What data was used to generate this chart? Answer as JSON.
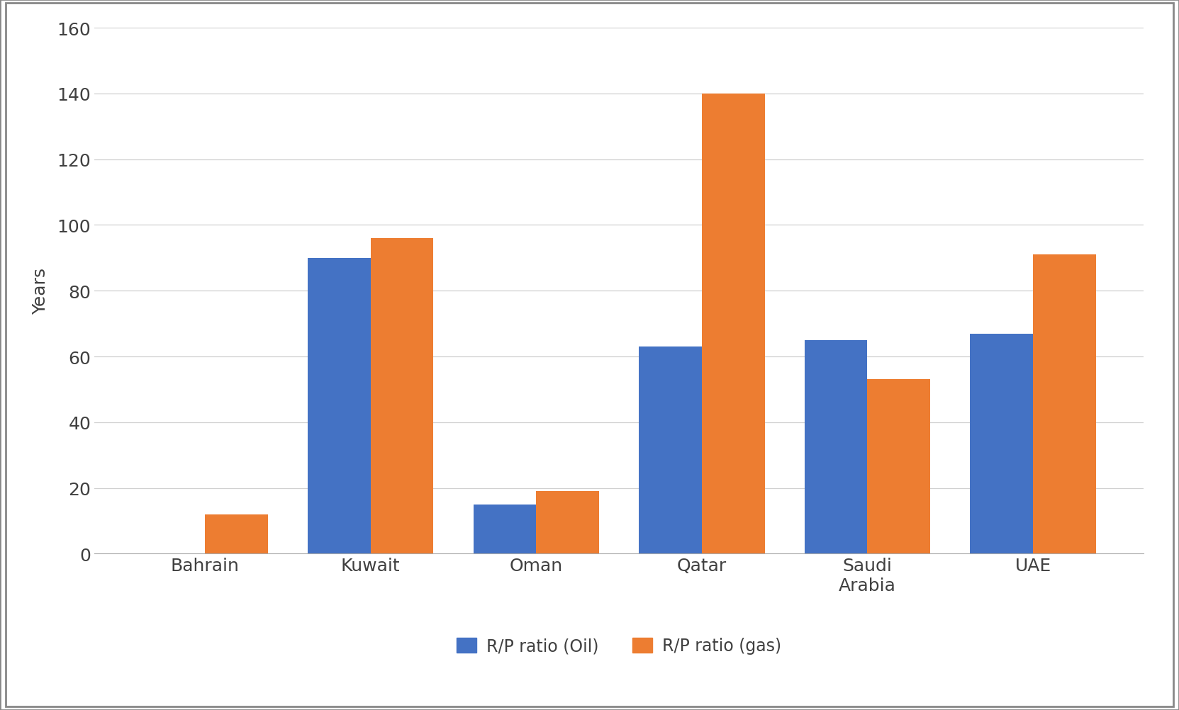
{
  "categories": [
    "Bahrain",
    "Kuwait",
    "Oman",
    "Qatar",
    "Saudi\nArabia",
    "UAE"
  ],
  "oil_values": [
    0,
    90,
    15,
    63,
    65,
    67
  ],
  "gas_values": [
    12,
    96,
    19,
    140,
    53,
    91
  ],
  "oil_color": "#4472C4",
  "gas_color": "#ED7D31",
  "ylabel": "Years",
  "ylim": [
    0,
    160
  ],
  "yticks": [
    0,
    20,
    40,
    60,
    80,
    100,
    120,
    140,
    160
  ],
  "legend_oil": "R/P ratio (Oil)",
  "legend_gas": "R/P ratio (gas)",
  "bar_width": 0.38,
  "background_color": "#ffffff",
  "grid_color": "#d0d0d0",
  "tick_label_fontsize": 18,
  "ylabel_fontsize": 18,
  "legend_fontsize": 17,
  "text_color": "#404040",
  "border_color": "#aaaaaa",
  "figure_border_color": "#888888"
}
